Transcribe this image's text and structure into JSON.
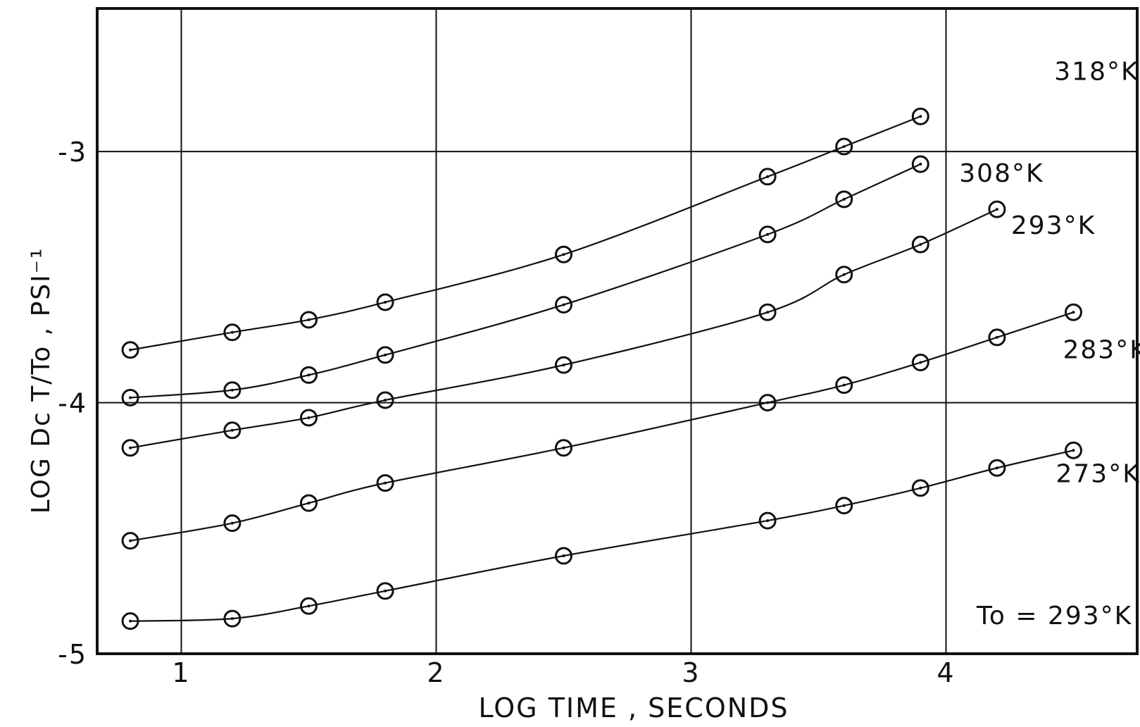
{
  "chart_data": {
    "type": "line",
    "xlabel": "LOG TIME , SECONDS",
    "ylabel": "LOG Dc T/To , PSI⁻¹",
    "xlim": [
      0.67,
      4.75
    ],
    "ylim": [
      -5,
      -2.43
    ],
    "xticks": [
      "1",
      "2",
      "3",
      "4"
    ],
    "yticks": [
      "-3",
      "-4",
      "-5"
    ],
    "grid": true,
    "annotation": "To = 293°K",
    "series": [
      {
        "name": "318°K",
        "x": [
          0.8,
          1.2,
          1.5,
          1.8,
          2.5,
          3.3,
          3.6,
          3.9
        ],
        "y": [
          -3.79,
          -3.72,
          -3.67,
          -3.6,
          -3.41,
          -3.1,
          -2.98,
          -2.86
        ]
      },
      {
        "name": "308°K",
        "x": [
          0.8,
          1.2,
          1.5,
          1.8,
          2.5,
          3.3,
          3.6,
          3.9
        ],
        "y": [
          -3.98,
          -3.95,
          -3.89,
          -3.81,
          -3.61,
          -3.33,
          -3.19,
          -3.05
        ]
      },
      {
        "name": "293°K",
        "x": [
          0.8,
          1.2,
          1.5,
          1.8,
          2.5,
          3.3,
          3.6,
          3.9,
          4.2
        ],
        "y": [
          -4.18,
          -4.11,
          -4.06,
          -3.99,
          -3.85,
          -3.64,
          -3.49,
          -3.37,
          -3.23
        ]
      },
      {
        "name": "283°K",
        "x": [
          0.8,
          1.2,
          1.5,
          1.8,
          2.5,
          3.3,
          3.6,
          3.9,
          4.2,
          4.5
        ],
        "y": [
          -4.55,
          -4.48,
          -4.4,
          -4.32,
          -4.18,
          -4.0,
          -3.93,
          -3.84,
          -3.74,
          -3.64
        ]
      },
      {
        "name": "273°K",
        "x": [
          0.8,
          1.2,
          1.5,
          1.8,
          2.5,
          3.3,
          3.6,
          3.9,
          4.2,
          4.5
        ],
        "y": [
          -4.87,
          -4.86,
          -4.81,
          -4.75,
          -4.61,
          -4.47,
          -4.41,
          -4.34,
          -4.26,
          -4.19
        ]
      }
    ]
  }
}
